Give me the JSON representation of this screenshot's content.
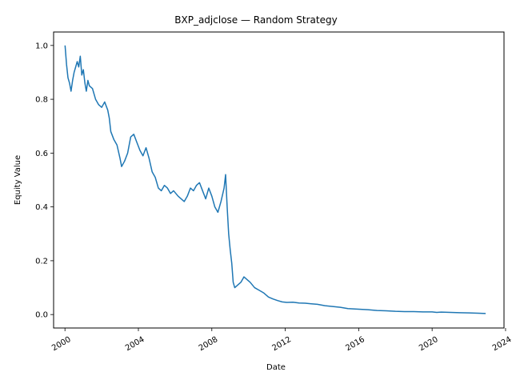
{
  "chart_data": {
    "type": "line",
    "title": "BXP_adjclose — Random Strategy",
    "xlabel": "Date",
    "ylabel": "Equity Value",
    "xlim": [
      "1999-05-20",
      "2023-12-01"
    ],
    "ylim": [
      -0.05,
      1.05
    ],
    "x_ticks": [
      "2000",
      "2004",
      "2008",
      "2012",
      "2016",
      "2020",
      "2024"
    ],
    "y_ticks": [
      "0.0",
      "0.2",
      "0.4",
      "0.6",
      "0.8",
      "1.0"
    ],
    "grid": false,
    "legend": "none",
    "line_color": "#1f77b4",
    "series": [
      {
        "x": [
          "2000-01-03",
          "2000-02-01",
          "2000-03-01",
          "2000-04-01",
          "2000-05-01",
          "2000-06-01",
          "2000-07-01",
          "2000-08-01",
          "2000-09-01",
          "2000-10-01",
          "2000-11-01",
          "2000-12-01",
          "2001-01-01",
          "2001-02-01",
          "2001-03-01",
          "2001-04-01",
          "2001-05-01",
          "2001-07-01",
          "2001-09-01",
          "2001-11-01",
          "2002-01-01",
          "2002-03-01",
          "2002-05-01",
          "2002-06-01",
          "2002-07-01",
          "2002-09-01",
          "2002-11-01",
          "2003-01-01",
          "2003-02-01",
          "2003-04-01",
          "2003-06-01",
          "2003-08-01",
          "2003-10-01",
          "2003-12-01",
          "2004-02-01",
          "2004-04-01",
          "2004-06-01",
          "2004-08-01",
          "2004-10-01",
          "2004-12-01",
          "2005-02-01",
          "2005-04-01",
          "2005-06-01",
          "2005-08-01",
          "2005-10-01",
          "2005-12-01",
          "2006-03-01",
          "2006-05-01",
          "2006-07-01",
          "2006-09-01",
          "2006-11-01",
          "2007-01-01",
          "2007-03-01",
          "2007-05-01",
          "2007-07-01",
          "2007-09-01",
          "2007-11-01",
          "2008-01-01",
          "2008-03-01",
          "2008-05-01",
          "2008-07-01",
          "2008-09-01",
          "2008-10-01",
          "2008-11-01",
          "2008-12-01",
          "2009-01-01",
          "2009-02-01",
          "2009-03-01",
          "2009-04-01",
          "2009-06-01",
          "2009-08-01",
          "2009-10-01",
          "2009-12-01",
          "2010-02-01",
          "2010-05-01",
          "2010-08-01",
          "2010-11-01",
          "2011-02-01",
          "2011-05-01",
          "2011-08-01",
          "2011-11-01",
          "2012-02-01",
          "2012-06-01",
          "2012-10-01",
          "2013-02-01",
          "2013-06-01",
          "2013-10-01",
          "2014-03-01",
          "2014-08-01",
          "2015-01-01",
          "2015-06-01",
          "2016-01-01",
          "2016-07-01",
          "2017-01-01",
          "2017-07-01",
          "2018-01-01",
          "2018-07-01",
          "2019-01-01",
          "2019-07-01",
          "2020-01-01",
          "2020-04-01",
          "2020-07-01",
          "2021-01-01",
          "2021-07-01",
          "2022-01-01",
          "2022-07-01",
          "2022-12-01"
        ],
        "y": [
          1.0,
          0.93,
          0.88,
          0.86,
          0.83,
          0.87,
          0.9,
          0.92,
          0.94,
          0.92,
          0.96,
          0.89,
          0.91,
          0.86,
          0.83,
          0.87,
          0.85,
          0.84,
          0.8,
          0.78,
          0.77,
          0.79,
          0.76,
          0.73,
          0.68,
          0.65,
          0.63,
          0.58,
          0.55,
          0.57,
          0.6,
          0.66,
          0.67,
          0.64,
          0.61,
          0.59,
          0.62,
          0.58,
          0.53,
          0.51,
          0.47,
          0.46,
          0.48,
          0.47,
          0.45,
          0.46,
          0.44,
          0.43,
          0.42,
          0.44,
          0.47,
          0.46,
          0.48,
          0.49,
          0.46,
          0.43,
          0.47,
          0.44,
          0.4,
          0.38,
          0.42,
          0.47,
          0.52,
          0.4,
          0.3,
          0.24,
          0.19,
          0.12,
          0.1,
          0.11,
          0.12,
          0.14,
          0.13,
          0.12,
          0.1,
          0.09,
          0.08,
          0.065,
          0.058,
          0.052,
          0.047,
          0.045,
          0.046,
          0.043,
          0.042,
          0.04,
          0.038,
          0.033,
          0.03,
          0.027,
          0.022,
          0.02,
          0.018,
          0.015,
          0.014,
          0.012,
          0.011,
          0.011,
          0.01,
          0.01,
          0.008,
          0.009,
          0.008,
          0.007,
          0.006,
          0.005,
          0.004
        ]
      }
    ]
  }
}
